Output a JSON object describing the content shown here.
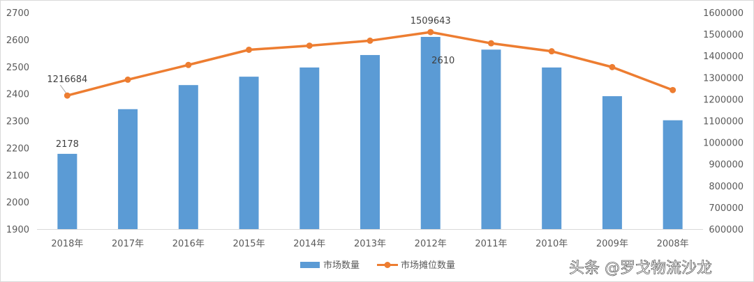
{
  "chart_data": {
    "type": "bar+line",
    "categories": [
      "2018年",
      "2017年",
      "2016年",
      "2015年",
      "2014年",
      "2013年",
      "2012年",
      "2011年",
      "2010年",
      "2009年",
      "2008年"
    ],
    "series": [
      {
        "name": "市场数量",
        "type": "bar",
        "axis": "left",
        "values": [
          2178,
          2343,
          2432,
          2463,
          2497,
          2543,
          2610,
          2563,
          2497,
          2391,
          2302
        ],
        "color": "#5B9BD5"
      },
      {
        "name": "市场摊位数量",
        "type": "line",
        "axis": "right",
        "values": [
          1216684,
          1290000,
          1358000,
          1428000,
          1447000,
          1470000,
          1509643,
          1458000,
          1421000,
          1348000,
          1242000
        ],
        "color": "#ED7D31"
      }
    ],
    "left_axis": {
      "min": 1900,
      "max": 2700,
      "step": 100
    },
    "right_axis": {
      "min": 600000,
      "max": 1600000,
      "step": 100000
    },
    "data_labels": [
      {
        "series": 0,
        "index": 0,
        "text": "2178"
      },
      {
        "series": 0,
        "index": 6,
        "text": "2610"
      },
      {
        "series": 1,
        "index": 0,
        "text": "1216684"
      },
      {
        "series": 1,
        "index": 6,
        "text": "1509643"
      }
    ],
    "legend": {
      "position": "bottom",
      "items": [
        "市场数量",
        "市场摊位数量"
      ]
    },
    "grid": false
  },
  "watermark": "头条 @罗戈物流沙龙"
}
